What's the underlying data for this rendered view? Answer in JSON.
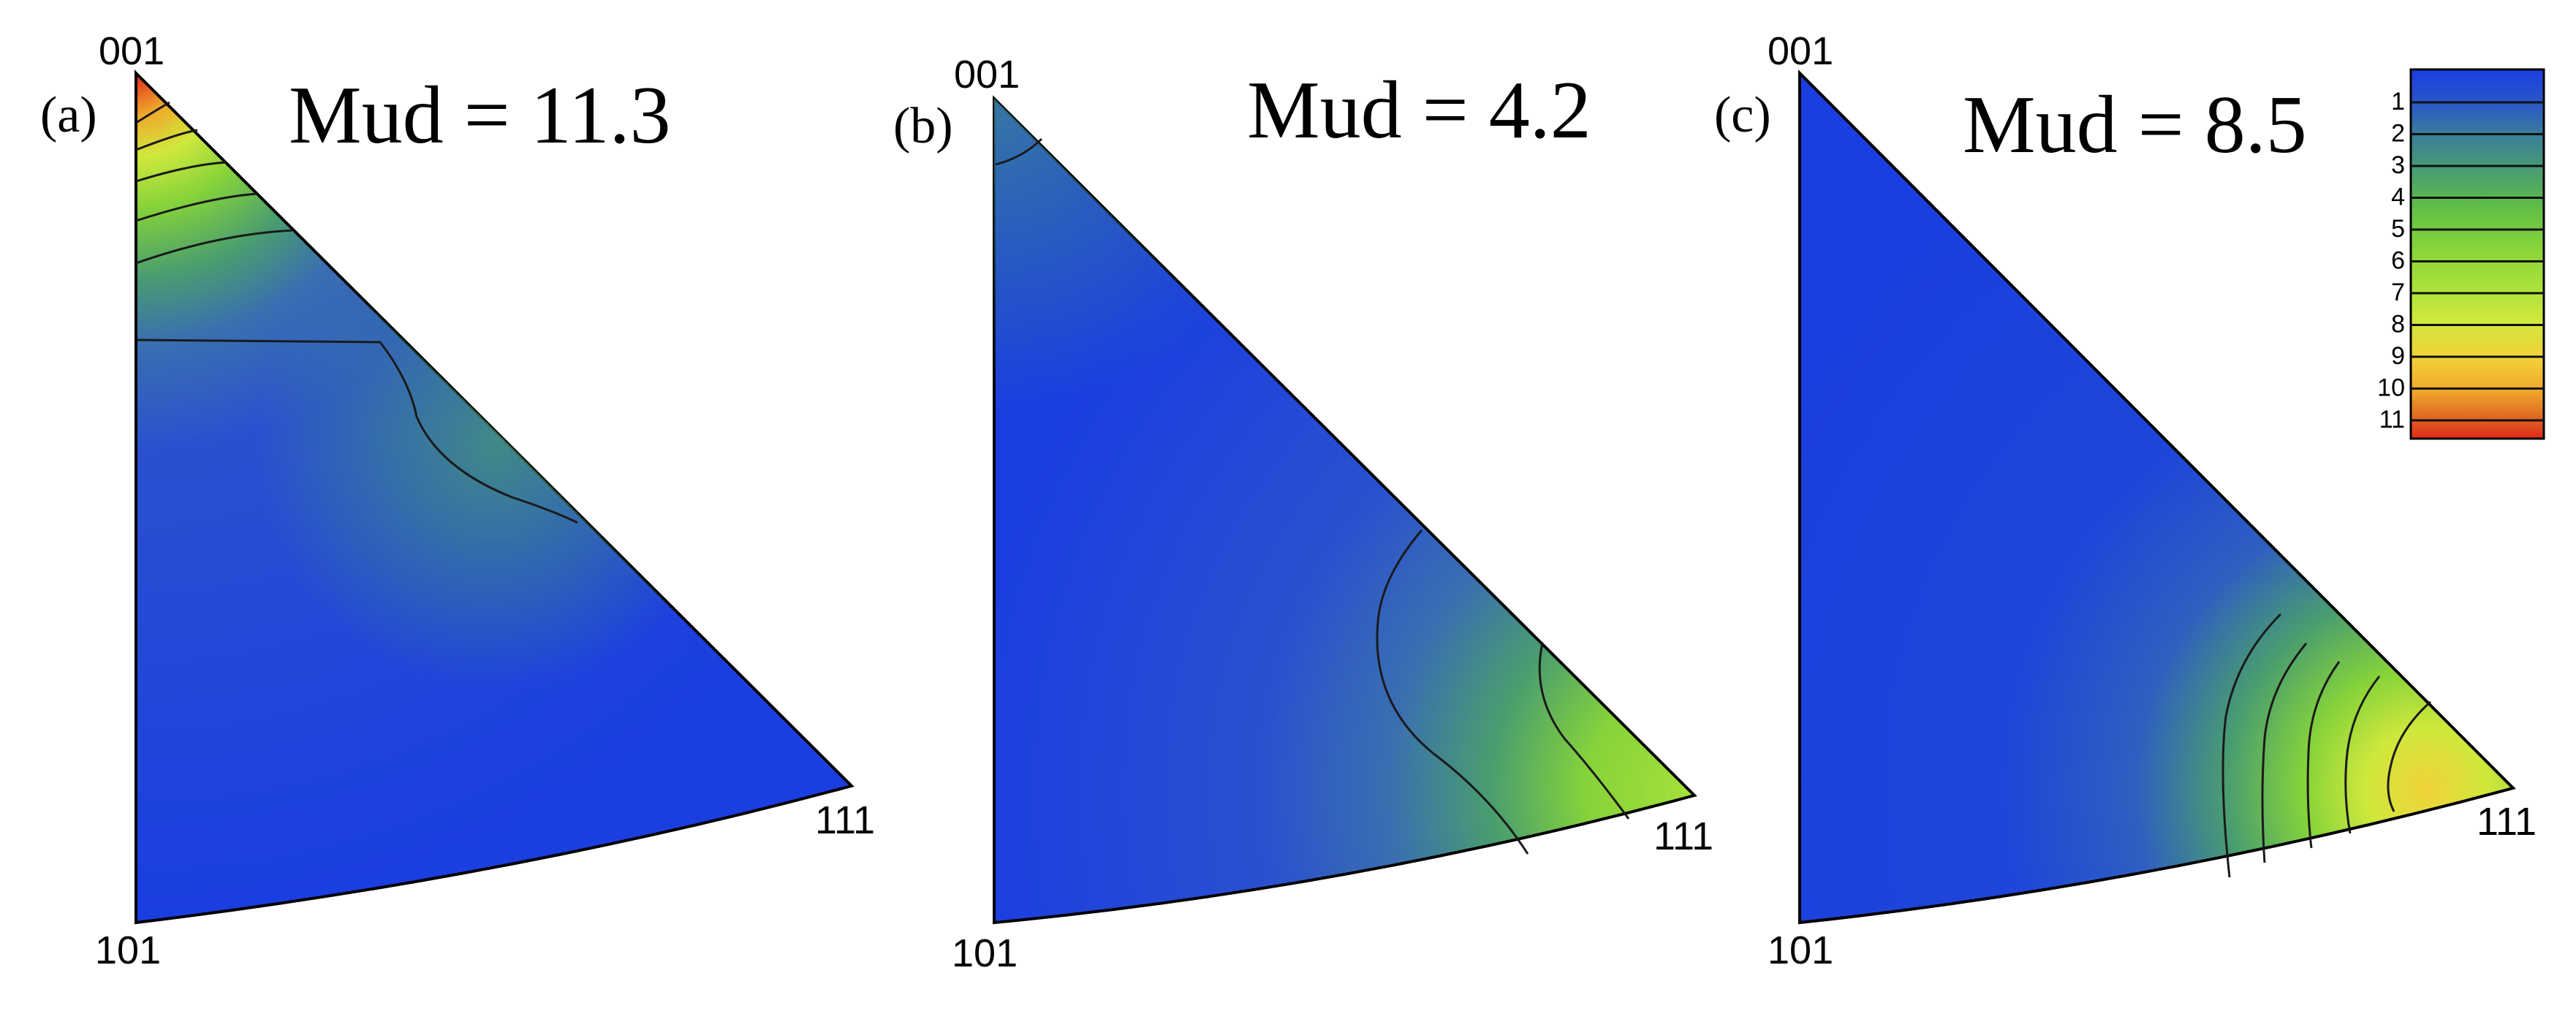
{
  "figure": {
    "panels": [
      {
        "id": "a",
        "label": "(a)",
        "mud_text": "Mud = 11.3",
        "corner_labels": {
          "top": "001",
          "bottom": "101",
          "right": "111"
        },
        "hotspot": {
          "pole": "001",
          "peak": 11.3
        }
      },
      {
        "id": "b",
        "label": "(b)",
        "mud_text": "Mud = 4.2",
        "corner_labels": {
          "top": "001",
          "bottom": "101",
          "right": "111"
        },
        "hotspot": {
          "pole": "111",
          "peak": 4.2
        }
      },
      {
        "id": "c",
        "label": "(c)",
        "mud_text": "Mud = 8.5",
        "corner_labels": {
          "top": "001",
          "bottom": "101",
          "right": "111"
        },
        "hotspot": {
          "pole": "111",
          "peak": 8.5
        }
      }
    ],
    "legend": {
      "ticks": [
        "1",
        "2",
        "3",
        "4",
        "5",
        "6",
        "7",
        "8",
        "9",
        "10",
        "11"
      ],
      "colors": [
        "#1b3ee0",
        "#2a56c8",
        "#3a7f9a",
        "#4a9e6e",
        "#62c046",
        "#86d33a",
        "#a6e13a",
        "#cfe83c",
        "#f2d23a",
        "#f0a82c",
        "#e06a22",
        "#e0281a"
      ]
    }
  }
}
